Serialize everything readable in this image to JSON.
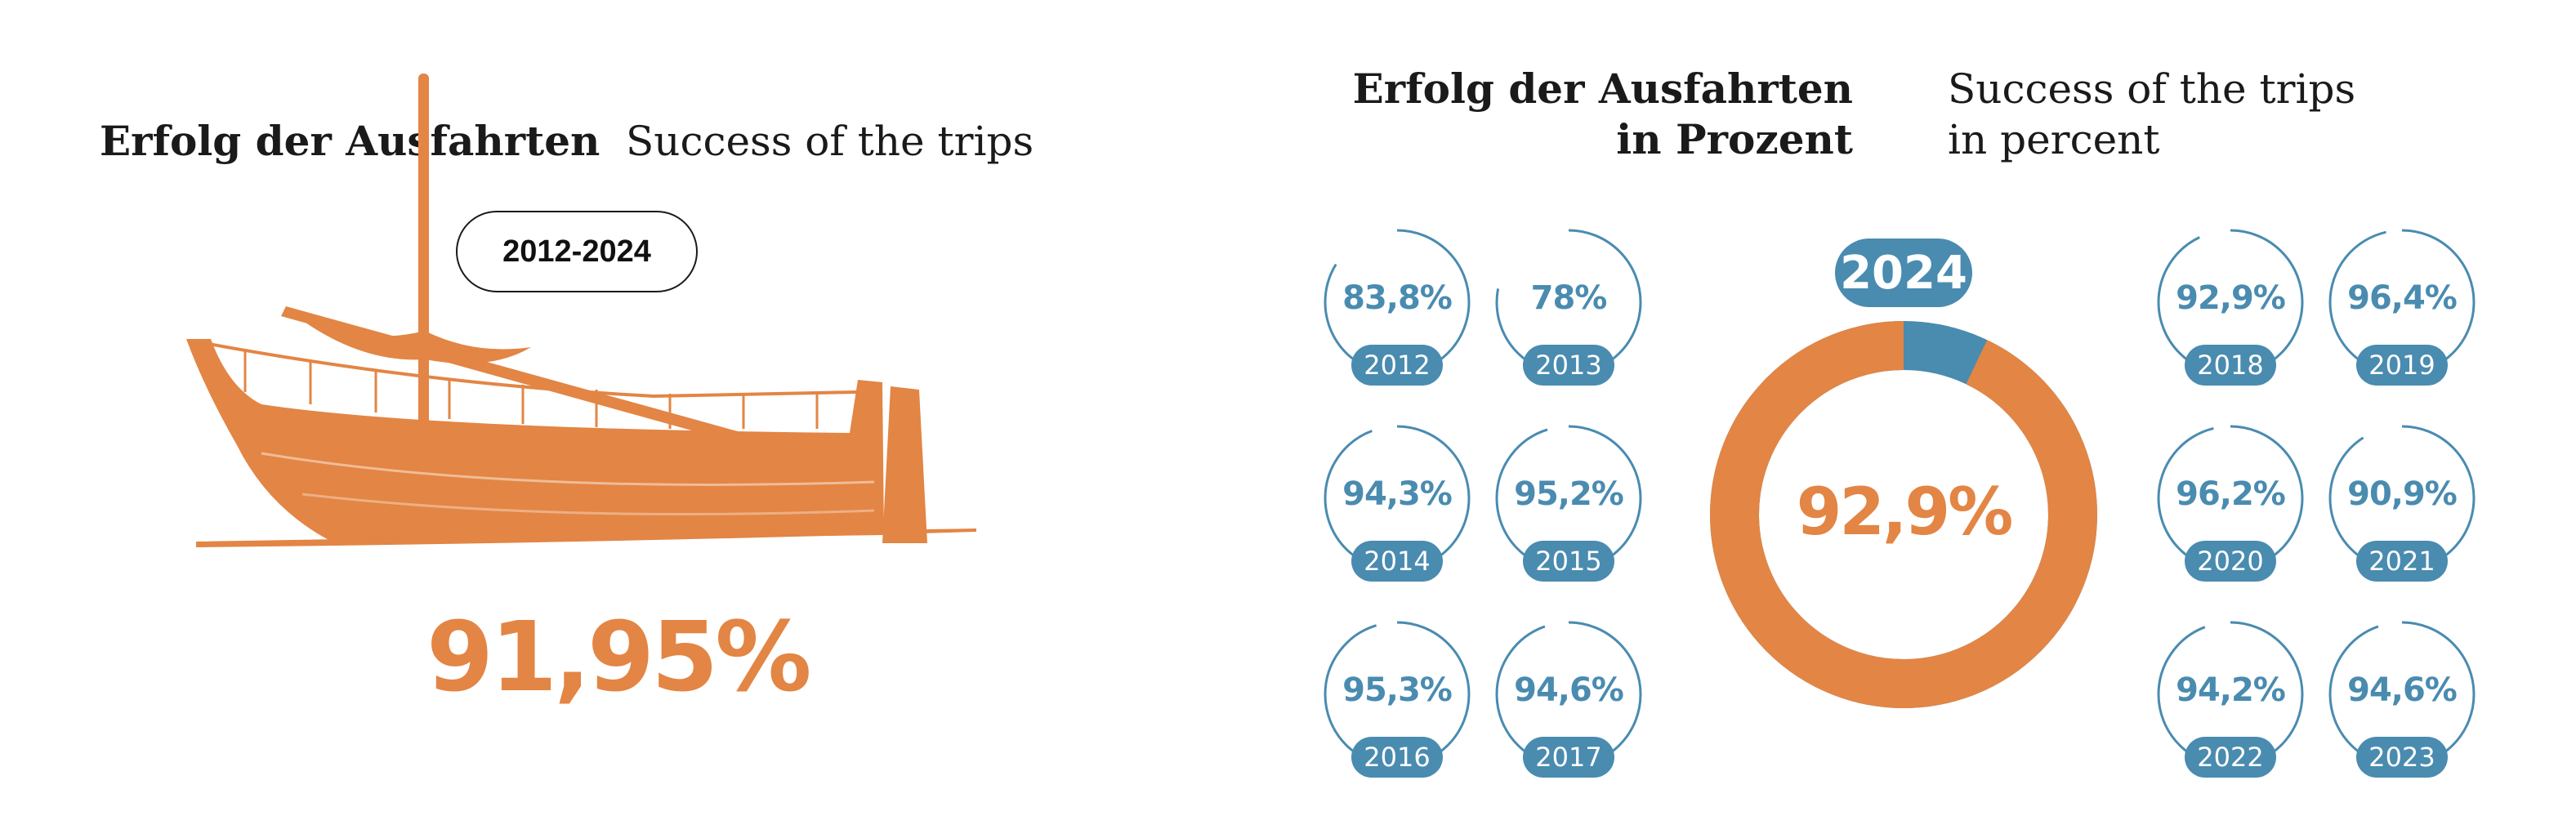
{
  "left": {
    "title_de": "Erfolg der Ausfahrten",
    "title_en": "Success of the trips",
    "period": "2012-2024",
    "overall": "91,95%",
    "colors": {
      "accent": "#E38544"
    }
  },
  "right": {
    "title_de_line1": "Erfolg der Ausfahrten",
    "title_de_line2": "in Prozent",
    "title_en_line1": "Success of the trips",
    "title_en_line2": "in percent",
    "center_year": "2024",
    "center_value": "92,9%"
  },
  "colors": {
    "orange": "#E38544",
    "blue": "#4A8BB0"
  },
  "chart_data": {
    "type": "pie",
    "categories": [
      "2012",
      "2013",
      "2014",
      "2015",
      "2016",
      "2017",
      "2018",
      "2019",
      "2020",
      "2021",
      "2022",
      "2023",
      "2024"
    ],
    "values": [
      83.8,
      78,
      94.3,
      95.2,
      95.3,
      94.6,
      92.9,
      96.4,
      96.2,
      90.9,
      94.2,
      94.6,
      92.9
    ],
    "labels": [
      "83,8%",
      "78%",
      "94,3%",
      "95,2%",
      "95,3%",
      "94,6%",
      "92,9%",
      "96,4%",
      "96,2%",
      "90,9%",
      "94,2%",
      "94,6%",
      "92,9%"
    ],
    "overall_label": "91,95%",
    "unit": "%"
  }
}
